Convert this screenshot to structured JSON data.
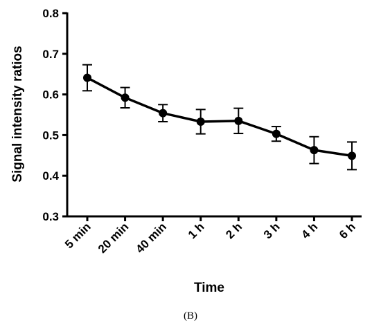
{
  "chart_data": {
    "type": "line",
    "title": "",
    "xlabel": "Time",
    "ylabel": "Signal intensity ratios",
    "panel_label": "(B)",
    "categories": [
      "5 min",
      "20 min",
      "40 min",
      "1 h",
      "2 h",
      "3 h",
      "4 h",
      "6 h"
    ],
    "series": [
      {
        "values": [
          0.641,
          0.592,
          0.554,
          0.533,
          0.535,
          0.503,
          0.463,
          0.449
        ],
        "error": [
          0.032,
          0.025,
          0.021,
          0.03,
          0.031,
          0.018,
          0.033,
          0.034
        ],
        "color": "#000000",
        "marker": "circle"
      }
    ],
    "ylim": [
      0.3,
      0.8
    ],
    "yticks": [
      0.3,
      0.4,
      0.5,
      0.6,
      0.7,
      0.8
    ],
    "ytick_labels": [
      "0.3",
      "0.4",
      "0.5",
      "0.6",
      "0.7",
      "0.8"
    ],
    "grid": false,
    "legend": "none"
  }
}
